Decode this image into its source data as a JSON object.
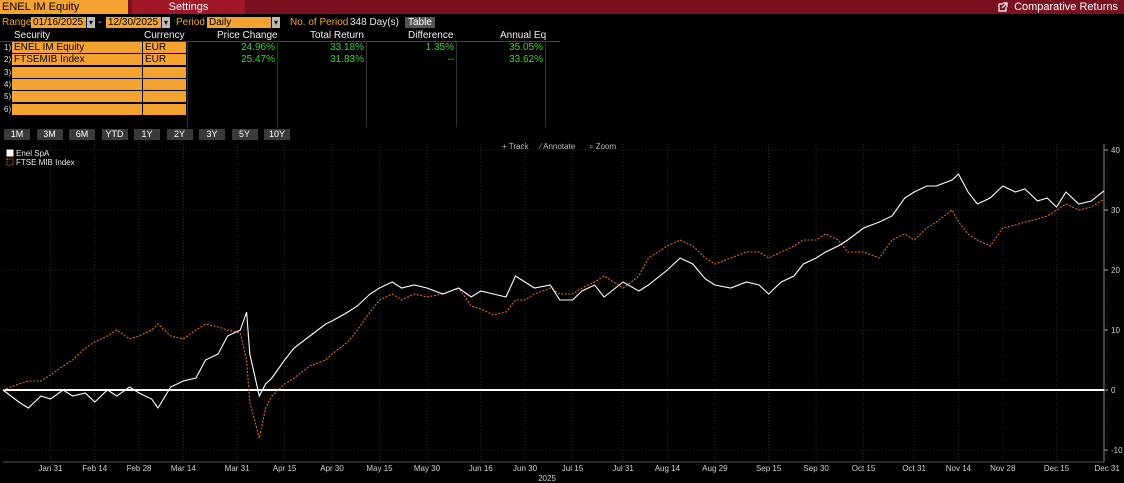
{
  "header": {
    "security_tab": "ENEL IM Equity",
    "settings_tab": "Settings",
    "right_title": "Comparative Returns"
  },
  "range": {
    "label": "Range",
    "start": "01/16/2025",
    "dash": "-",
    "end": "12/30/2025",
    "period_label": "Period",
    "period_value": "Daily",
    "num_period_label": "No. of Period",
    "num_period_value": "348 Day(s)",
    "table_button": "Table"
  },
  "table": {
    "columns": [
      "Security",
      "Currency",
      "Price Change",
      "Total Return",
      "Difference",
      "Annual Eq"
    ],
    "rows": [
      {
        "n": "1)",
        "security": "ENEL IM Equity",
        "currency": "EUR",
        "price_change": "24.96%",
        "total_return": "33.18%",
        "difference": "1.35%",
        "annual_eq": "35.05%"
      },
      {
        "n": "2)",
        "security": "FTSEMIB Index",
        "currency": "EUR",
        "price_change": "25.47%",
        "total_return": "31.83%",
        "difference": "--",
        "annual_eq": "33.62%"
      },
      {
        "n": "3)",
        "security": "",
        "currency": "",
        "price_change": "",
        "total_return": "",
        "difference": "",
        "annual_eq": ""
      },
      {
        "n": "4)",
        "security": "",
        "currency": "",
        "price_change": "",
        "total_return": "",
        "difference": "",
        "annual_eq": ""
      },
      {
        "n": "5)",
        "security": "",
        "currency": "",
        "price_change": "",
        "total_return": "",
        "difference": "",
        "annual_eq": ""
      },
      {
        "n": "6)",
        "security": "",
        "currency": "",
        "price_change": "",
        "total_return": "",
        "difference": "",
        "annual_eq": ""
      }
    ]
  },
  "periods": [
    "1M",
    "3M",
    "6M",
    "YTD",
    "1Y",
    "2Y",
    "3Y",
    "5Y",
    "10Y"
  ],
  "tools": {
    "track": "Track",
    "annotate": "Annotate",
    "zoom": "Zoom"
  },
  "colors": {
    "accent": "#f5a330",
    "titlebar": "#7a1120",
    "positive": "#3cd23c",
    "enel": "#ffffff",
    "ftse": "#e06a1e"
  },
  "chart_data": {
    "type": "line",
    "xlabel": "2025",
    "ylabel": "",
    "ylim": [
      -12,
      41
    ],
    "yticks": [
      -10,
      0,
      10,
      20,
      30,
      40
    ],
    "x_tick_labels": [
      "Jan 31",
      "Feb 14",
      "Feb 28",
      "Mar 14",
      "Mar 31",
      "Apr 15",
      "Apr 30",
      "May 15",
      "May 30",
      "Jun 16",
      "Jun 30",
      "Jul 15",
      "Jul 31",
      "Aug 14",
      "Aug 29",
      "Sep 15",
      "Sep 30",
      "Oct 15",
      "Oct 31",
      "Nov 14",
      "Nov 28",
      "Dec 15",
      "Dec 31"
    ],
    "legend_position": "top-left",
    "series": [
      {
        "name": "Enel SpA",
        "color": "#ffffff",
        "style": "solid",
        "points": [
          [
            "2025-01-16",
            0
          ],
          [
            "2025-01-21",
            -2
          ],
          [
            "2025-01-24",
            -3
          ],
          [
            "2025-01-28",
            -1
          ],
          [
            "2025-01-31",
            -1.5
          ],
          [
            "2025-02-04",
            0
          ],
          [
            "2025-02-07",
            -1
          ],
          [
            "2025-02-11",
            -0.5
          ],
          [
            "2025-02-14",
            -2
          ],
          [
            "2025-02-18",
            0
          ],
          [
            "2025-02-21",
            -1
          ],
          [
            "2025-02-25",
            0.5
          ],
          [
            "2025-02-28",
            -0.5
          ],
          [
            "2025-03-04",
            -1.5
          ],
          [
            "2025-03-06",
            -3
          ],
          [
            "2025-03-10",
            0.5
          ],
          [
            "2025-03-14",
            1.5
          ],
          [
            "2025-03-18",
            2
          ],
          [
            "2025-03-21",
            5
          ],
          [
            "2025-03-25",
            6
          ],
          [
            "2025-03-28",
            9
          ],
          [
            "2025-04-01",
            10
          ],
          [
            "2025-04-03",
            13
          ],
          [
            "2025-04-04",
            6
          ],
          [
            "2025-04-07",
            -1
          ],
          [
            "2025-04-09",
            1
          ],
          [
            "2025-04-11",
            2
          ],
          [
            "2025-04-15",
            5
          ],
          [
            "2025-04-18",
            7
          ],
          [
            "2025-04-23",
            9
          ],
          [
            "2025-04-28",
            11
          ],
          [
            "2025-04-30",
            11.5
          ],
          [
            "2025-05-05",
            13
          ],
          [
            "2025-05-08",
            14
          ],
          [
            "2025-05-12",
            16
          ],
          [
            "2025-05-15",
            17
          ],
          [
            "2025-05-19",
            18
          ],
          [
            "2025-05-22",
            17
          ],
          [
            "2025-05-26",
            17.5
          ],
          [
            "2025-05-30",
            17
          ],
          [
            "2025-06-04",
            16
          ],
          [
            "2025-06-09",
            17
          ],
          [
            "2025-06-13",
            15.5
          ],
          [
            "2025-06-16",
            16.5
          ],
          [
            "2025-06-20",
            16
          ],
          [
            "2025-06-24",
            15.5
          ],
          [
            "2025-06-27",
            19
          ],
          [
            "2025-06-30",
            18
          ],
          [
            "2025-07-03",
            17
          ],
          [
            "2025-07-08",
            17.5
          ],
          [
            "2025-07-11",
            15
          ],
          [
            "2025-07-15",
            15
          ],
          [
            "2025-07-18",
            16.5
          ],
          [
            "2025-07-22",
            17.5
          ],
          [
            "2025-07-25",
            15.5
          ],
          [
            "2025-07-31",
            18
          ],
          [
            "2025-08-05",
            16.5
          ],
          [
            "2025-08-08",
            17.5
          ],
          [
            "2025-08-14",
            20
          ],
          [
            "2025-08-18",
            22
          ],
          [
            "2025-08-22",
            21
          ],
          [
            "2025-08-26",
            18.5
          ],
          [
            "2025-08-29",
            17.5
          ],
          [
            "2025-09-03",
            17
          ],
          [
            "2025-09-08",
            18
          ],
          [
            "2025-09-12",
            17.5
          ],
          [
            "2025-09-15",
            16
          ],
          [
            "2025-09-19",
            18
          ],
          [
            "2025-09-23",
            19
          ],
          [
            "2025-09-26",
            21
          ],
          [
            "2025-09-30",
            22
          ],
          [
            "2025-10-03",
            23
          ],
          [
            "2025-10-07",
            24
          ],
          [
            "2025-10-10",
            25
          ],
          [
            "2025-10-15",
            27
          ],
          [
            "2025-10-20",
            28
          ],
          [
            "2025-10-24",
            29
          ],
          [
            "2025-10-28",
            32
          ],
          [
            "2025-10-31",
            33
          ],
          [
            "2025-11-04",
            34
          ],
          [
            "2025-11-07",
            34
          ],
          [
            "2025-11-12",
            35
          ],
          [
            "2025-11-14",
            36
          ],
          [
            "2025-11-17",
            33
          ],
          [
            "2025-11-20",
            31
          ],
          [
            "2025-11-24",
            32
          ],
          [
            "2025-11-28",
            34
          ],
          [
            "2025-12-02",
            33
          ],
          [
            "2025-12-05",
            33.5
          ],
          [
            "2025-12-09",
            31.5
          ],
          [
            "2025-12-12",
            32
          ],
          [
            "2025-12-15",
            30.5
          ],
          [
            "2025-12-18",
            33
          ],
          [
            "2025-12-22",
            31
          ],
          [
            "2025-12-26",
            31.5
          ],
          [
            "2025-12-30",
            33.2
          ]
        ]
      },
      {
        "name": "FTSE MIB Index",
        "color": "#e06a1e",
        "style": "dashed",
        "points": [
          [
            "2025-01-16",
            0
          ],
          [
            "2025-01-21",
            1
          ],
          [
            "2025-01-24",
            1.5
          ],
          [
            "2025-01-28",
            1.5
          ],
          [
            "2025-01-31",
            2.5
          ],
          [
            "2025-02-04",
            4
          ],
          [
            "2025-02-07",
            5
          ],
          [
            "2025-02-11",
            7
          ],
          [
            "2025-02-14",
            8
          ],
          [
            "2025-02-18",
            9
          ],
          [
            "2025-02-21",
            10
          ],
          [
            "2025-02-25",
            8.5
          ],
          [
            "2025-02-28",
            9
          ],
          [
            "2025-03-04",
            10
          ],
          [
            "2025-03-06",
            11
          ],
          [
            "2025-03-10",
            9
          ],
          [
            "2025-03-14",
            8.5
          ],
          [
            "2025-03-18",
            10
          ],
          [
            "2025-03-21",
            11
          ],
          [
            "2025-03-25",
            10.5
          ],
          [
            "2025-03-28",
            10
          ],
          [
            "2025-04-01",
            9.5
          ],
          [
            "2025-04-03",
            5
          ],
          [
            "2025-04-04",
            -2
          ],
          [
            "2025-04-07",
            -8
          ],
          [
            "2025-04-09",
            -3
          ],
          [
            "2025-04-11",
            -1
          ],
          [
            "2025-04-15",
            1
          ],
          [
            "2025-04-18",
            2
          ],
          [
            "2025-04-23",
            4
          ],
          [
            "2025-04-28",
            5
          ],
          [
            "2025-04-30",
            6
          ],
          [
            "2025-05-05",
            8
          ],
          [
            "2025-05-08",
            10
          ],
          [
            "2025-05-12",
            13
          ],
          [
            "2025-05-15",
            15
          ],
          [
            "2025-05-19",
            16
          ],
          [
            "2025-05-22",
            15
          ],
          [
            "2025-05-26",
            16
          ],
          [
            "2025-05-30",
            15.5
          ],
          [
            "2025-06-04",
            16
          ],
          [
            "2025-06-09",
            17
          ],
          [
            "2025-06-13",
            14
          ],
          [
            "2025-06-16",
            13.5
          ],
          [
            "2025-06-20",
            12.5
          ],
          [
            "2025-06-24",
            13
          ],
          [
            "2025-06-27",
            15
          ],
          [
            "2025-06-30",
            15
          ],
          [
            "2025-07-03",
            16
          ],
          [
            "2025-07-08",
            17
          ],
          [
            "2025-07-11",
            16
          ],
          [
            "2025-07-15",
            16
          ],
          [
            "2025-07-18",
            17
          ],
          [
            "2025-07-22",
            18
          ],
          [
            "2025-07-25",
            19
          ],
          [
            "2025-07-31",
            17
          ],
          [
            "2025-08-05",
            19
          ],
          [
            "2025-08-08",
            22
          ],
          [
            "2025-08-14",
            24
          ],
          [
            "2025-08-18",
            25
          ],
          [
            "2025-08-22",
            24
          ],
          [
            "2025-08-26",
            22
          ],
          [
            "2025-08-29",
            21
          ],
          [
            "2025-09-03",
            22
          ],
          [
            "2025-09-08",
            23
          ],
          [
            "2025-09-12",
            23
          ],
          [
            "2025-09-15",
            22
          ],
          [
            "2025-09-19",
            23
          ],
          [
            "2025-09-23",
            24
          ],
          [
            "2025-09-26",
            25
          ],
          [
            "2025-09-30",
            25
          ],
          [
            "2025-10-03",
            26
          ],
          [
            "2025-10-07",
            25
          ],
          [
            "2025-10-10",
            23
          ],
          [
            "2025-10-15",
            23
          ],
          [
            "2025-10-20",
            22
          ],
          [
            "2025-10-24",
            25
          ],
          [
            "2025-10-28",
            26
          ],
          [
            "2025-10-31",
            25
          ],
          [
            "2025-11-04",
            27
          ],
          [
            "2025-11-07",
            28
          ],
          [
            "2025-11-12",
            30
          ],
          [
            "2025-11-14",
            28
          ],
          [
            "2025-11-17",
            26
          ],
          [
            "2025-11-20",
            25
          ],
          [
            "2025-11-24",
            24
          ],
          [
            "2025-11-28",
            27
          ],
          [
            "2025-12-02",
            27.5
          ],
          [
            "2025-12-05",
            28
          ],
          [
            "2025-12-09",
            28.5
          ],
          [
            "2025-12-12",
            29
          ],
          [
            "2025-12-15",
            30
          ],
          [
            "2025-12-18",
            31
          ],
          [
            "2025-12-22",
            30
          ],
          [
            "2025-12-26",
            30.5
          ],
          [
            "2025-12-30",
            31.8
          ]
        ]
      }
    ]
  }
}
